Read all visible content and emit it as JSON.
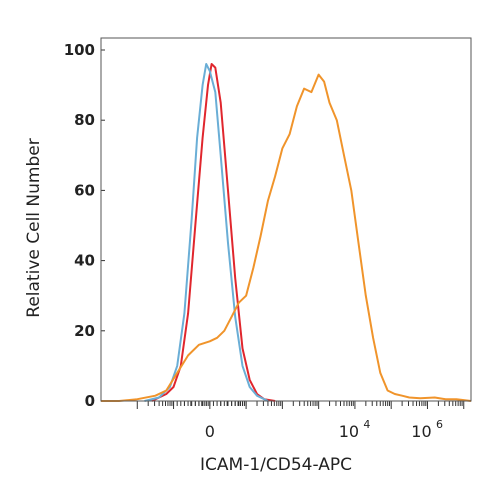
{
  "chart_data": {
    "type": "line",
    "xlabel": "ICAM-1/CD54-APC",
    "ylabel": "Relative Cell Number",
    "ylim": [
      0,
      100
    ],
    "xlim": [
      -3,
      7.2
    ],
    "x_scale": "biexponential",
    "yticks": [
      "0",
      "20",
      "40",
      "60",
      "80",
      "100"
    ],
    "xticks": [
      {
        "value": 0,
        "base": "0",
        "exp": ""
      },
      {
        "value": 4,
        "base": "10",
        "exp": "4"
      },
      {
        "value": 6,
        "base": "10",
        "exp": "6"
      }
    ],
    "grid": false,
    "legend": "none",
    "series": [
      {
        "color": "#e0262d",
        "points": [
          [
            -1.6,
            0
          ],
          [
            -1.2,
            2
          ],
          [
            -1.0,
            4
          ],
          [
            -0.8,
            10
          ],
          [
            -0.6,
            25
          ],
          [
            -0.4,
            50
          ],
          [
            -0.2,
            75
          ],
          [
            -0.05,
            90
          ],
          [
            0.05,
            96
          ],
          [
            0.15,
            95
          ],
          [
            0.3,
            85
          ],
          [
            0.5,
            60
          ],
          [
            0.7,
            35
          ],
          [
            0.9,
            15
          ],
          [
            1.1,
            6
          ],
          [
            1.3,
            2
          ],
          [
            1.5,
            0.5
          ],
          [
            1.8,
            0
          ]
        ]
      },
      {
        "color": "#6aaed6",
        "points": [
          [
            -1.8,
            0
          ],
          [
            -1.4,
            1
          ],
          [
            -1.1,
            4
          ],
          [
            -0.9,
            10
          ],
          [
            -0.7,
            25
          ],
          [
            -0.5,
            52
          ],
          [
            -0.35,
            75
          ],
          [
            -0.2,
            90
          ],
          [
            -0.1,
            96
          ],
          [
            0.0,
            94
          ],
          [
            0.15,
            88
          ],
          [
            0.3,
            70
          ],
          [
            0.5,
            45
          ],
          [
            0.7,
            24
          ],
          [
            0.9,
            10
          ],
          [
            1.1,
            4
          ],
          [
            1.3,
            1.5
          ],
          [
            1.6,
            0
          ]
        ]
      },
      {
        "color": "#f0942b",
        "points": [
          [
            -3.0,
            0
          ],
          [
            -2.5,
            0
          ],
          [
            -2.0,
            0.5
          ],
          [
            -1.5,
            1.5
          ],
          [
            -1.2,
            3
          ],
          [
            -0.9,
            8
          ],
          [
            -0.6,
            13
          ],
          [
            -0.3,
            16
          ],
          [
            0.0,
            17
          ],
          [
            0.2,
            18
          ],
          [
            0.4,
            20
          ],
          [
            0.6,
            24
          ],
          [
            0.8,
            28
          ],
          [
            1.0,
            30
          ],
          [
            1.2,
            38
          ],
          [
            1.4,
            47
          ],
          [
            1.6,
            57
          ],
          [
            1.8,
            64
          ],
          [
            2.0,
            72
          ],
          [
            2.2,
            76
          ],
          [
            2.4,
            84
          ],
          [
            2.6,
            89
          ],
          [
            2.8,
            88
          ],
          [
            3.0,
            93
          ],
          [
            3.15,
            91
          ],
          [
            3.3,
            85
          ],
          [
            3.5,
            80
          ],
          [
            3.7,
            70
          ],
          [
            3.9,
            60
          ],
          [
            4.1,
            45
          ],
          [
            4.3,
            30
          ],
          [
            4.5,
            18
          ],
          [
            4.7,
            8
          ],
          [
            4.9,
            3
          ],
          [
            5.1,
            2
          ],
          [
            5.3,
            1.5
          ],
          [
            5.5,
            1
          ],
          [
            5.8,
            0.8
          ],
          [
            6.2,
            1
          ],
          [
            6.5,
            0.5
          ],
          [
            6.8,
            0.5
          ],
          [
            7.2,
            0
          ]
        ]
      }
    ]
  }
}
